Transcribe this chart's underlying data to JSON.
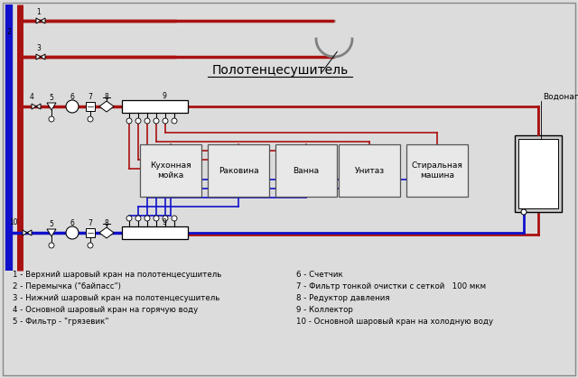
{
  "bg_color": "#dcdcdc",
  "legend_left": [
    "1 - Верхний шаровый кран на полотенцесушитель",
    "2 - Перемычка (\"байпасс\")",
    "3 - Нижний шаровый кран на полотенцесушитель",
    "4 - Основной шаровый кран на горячую воду",
    "5 - Фильтр - \"грязевик\""
  ],
  "legend_right": [
    "6 - Счетчик",
    "7 - Фильтр тонкой очистки с сеткой   100 мкм",
    "8 - Редуктор давления",
    "9 - Коллектор",
    "10 - Основной шаровый кран на холодную воду"
  ],
  "label_towel": "Полотенцесушитель",
  "label_boiler": "Водонагреватель",
  "appliances": [
    "Кухонная\nмойка",
    "Раковина",
    "Ванна",
    "Унитаз",
    "Стиральная\nмашина"
  ],
  "hot_color": "#aa1111",
  "cold_color": "#1111cc",
  "bg_pipe_hot": "#cc2222",
  "bg_pipe_cold": "#2222dd",
  "font_size": 6.5,
  "label_font_size": 10
}
